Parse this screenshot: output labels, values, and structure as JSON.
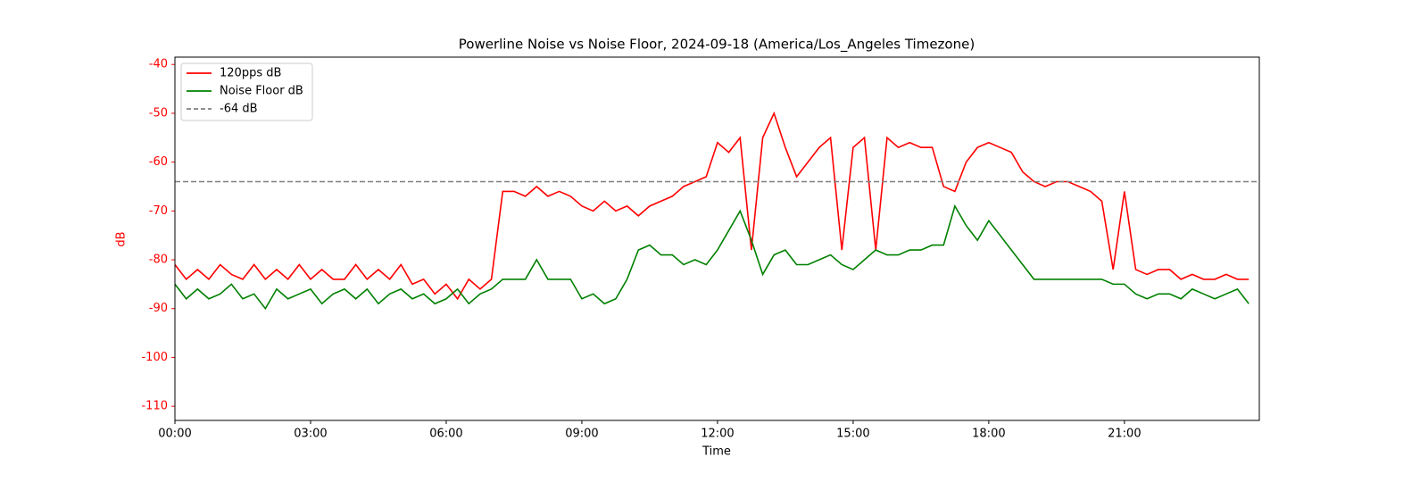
{
  "chart_data": {
    "type": "line",
    "title": "Powerline Noise vs Noise Floor, 2024-09-18 (America/Los_Angeles Timezone)",
    "xlabel": "Time",
    "ylabel": "dB",
    "axis_color": "#ff0000",
    "x": [
      "00:00",
      "00:15",
      "00:30",
      "00:45",
      "01:00",
      "01:15",
      "01:30",
      "01:45",
      "02:00",
      "02:15",
      "02:30",
      "02:45",
      "03:00",
      "03:15",
      "03:30",
      "03:45",
      "04:00",
      "04:15",
      "04:30",
      "04:45",
      "05:00",
      "05:15",
      "05:30",
      "05:45",
      "06:00",
      "06:15",
      "06:30",
      "06:45",
      "07:00",
      "07:15",
      "07:30",
      "07:45",
      "08:00",
      "08:15",
      "08:30",
      "08:45",
      "09:00",
      "09:15",
      "09:30",
      "09:45",
      "10:00",
      "10:15",
      "10:30",
      "10:45",
      "11:00",
      "11:15",
      "11:30",
      "11:45",
      "12:00",
      "12:15",
      "12:30",
      "12:45",
      "13:00",
      "13:15",
      "13:30",
      "13:45",
      "14:00",
      "14:15",
      "14:30",
      "14:45",
      "15:00",
      "15:15",
      "15:30",
      "15:45",
      "16:00",
      "16:15",
      "16:30",
      "16:45",
      "17:00",
      "17:15",
      "17:30",
      "17:45",
      "18:00",
      "18:15",
      "18:30",
      "18:45",
      "19:00",
      "19:15",
      "19:30",
      "19:45",
      "20:00",
      "20:15",
      "20:30",
      "20:45",
      "21:00",
      "21:15",
      "21:30",
      "21:45",
      "22:00",
      "22:15",
      "22:30",
      "22:45",
      "23:00",
      "23:15",
      "23:30",
      "23:45"
    ],
    "series": [
      {
        "name": "120pps dB",
        "color": "#ff0000",
        "values": [
          -81,
          -84,
          -82,
          -84,
          -81,
          -83,
          -84,
          -81,
          -84,
          -82,
          -84,
          -81,
          -84,
          -82,
          -84,
          -84,
          -81,
          -84,
          -82,
          -84,
          -81,
          -85,
          -84,
          -87,
          -85,
          -88,
          -84,
          -86,
          -84,
          -66,
          -66,
          -67,
          -65,
          -67,
          -66,
          -67,
          -69,
          -70,
          -68,
          -70,
          -69,
          -71,
          -69,
          -68,
          -67,
          -65,
          -64,
          -63,
          -56,
          -58,
          -55,
          -78,
          -55,
          -50,
          -57,
          -63,
          -60,
          -57,
          -55,
          -78,
          -57,
          -55,
          -78,
          -55,
          -57,
          -56,
          -57,
          -57,
          -65,
          -66,
          -60,
          -57,
          -56,
          -57,
          -58,
          -62,
          -64,
          -65,
          -64,
          -64,
          -65,
          -66,
          -68,
          -82,
          -66,
          -82,
          -83,
          -82,
          -82,
          -84,
          -83,
          -84,
          -84,
          -83,
          -84,
          -84
        ]
      },
      {
        "name": "Noise Floor dB",
        "color": "#008000",
        "values": [
          -85,
          -88,
          -86,
          -88,
          -87,
          -85,
          -88,
          -87,
          -90,
          -86,
          -88,
          -87,
          -86,
          -89,
          -87,
          -86,
          -88,
          -86,
          -89,
          -87,
          -86,
          -88,
          -87,
          -89,
          -88,
          -86,
          -89,
          -87,
          -86,
          -84,
          -84,
          -84,
          -80,
          -84,
          -84,
          -84,
          -88,
          -87,
          -89,
          -88,
          -84,
          -78,
          -77,
          -79,
          -79,
          -81,
          -80,
          -81,
          -78,
          -74,
          -70,
          -76,
          -83,
          -79,
          -78,
          -81,
          -81,
          -80,
          -79,
          -81,
          -82,
          -80,
          -78,
          -79,
          -79,
          -78,
          -78,
          -77,
          -77,
          -69,
          -73,
          -76,
          -72,
          -75,
          -78,
          -81,
          -84,
          -84,
          -84,
          -84,
          -84,
          -84,
          -84,
          -85,
          -85,
          -87,
          -88,
          -87,
          -87,
          -88,
          -86,
          -87,
          -88,
          -87,
          -86,
          -89
        ]
      }
    ],
    "hline": {
      "name": "-64 dB",
      "value": -64,
      "color": "#808080"
    },
    "xlim": [
      "00:00",
      "23:59"
    ],
    "xticks": [
      "00:00",
      "03:00",
      "06:00",
      "09:00",
      "12:00",
      "15:00",
      "18:00",
      "21:00"
    ],
    "ylim": [
      -112.9,
      -38.5
    ],
    "yticks": [
      -40,
      -50,
      -60,
      -70,
      -80,
      -90,
      -100,
      -110
    ],
    "legend": "upper left"
  }
}
